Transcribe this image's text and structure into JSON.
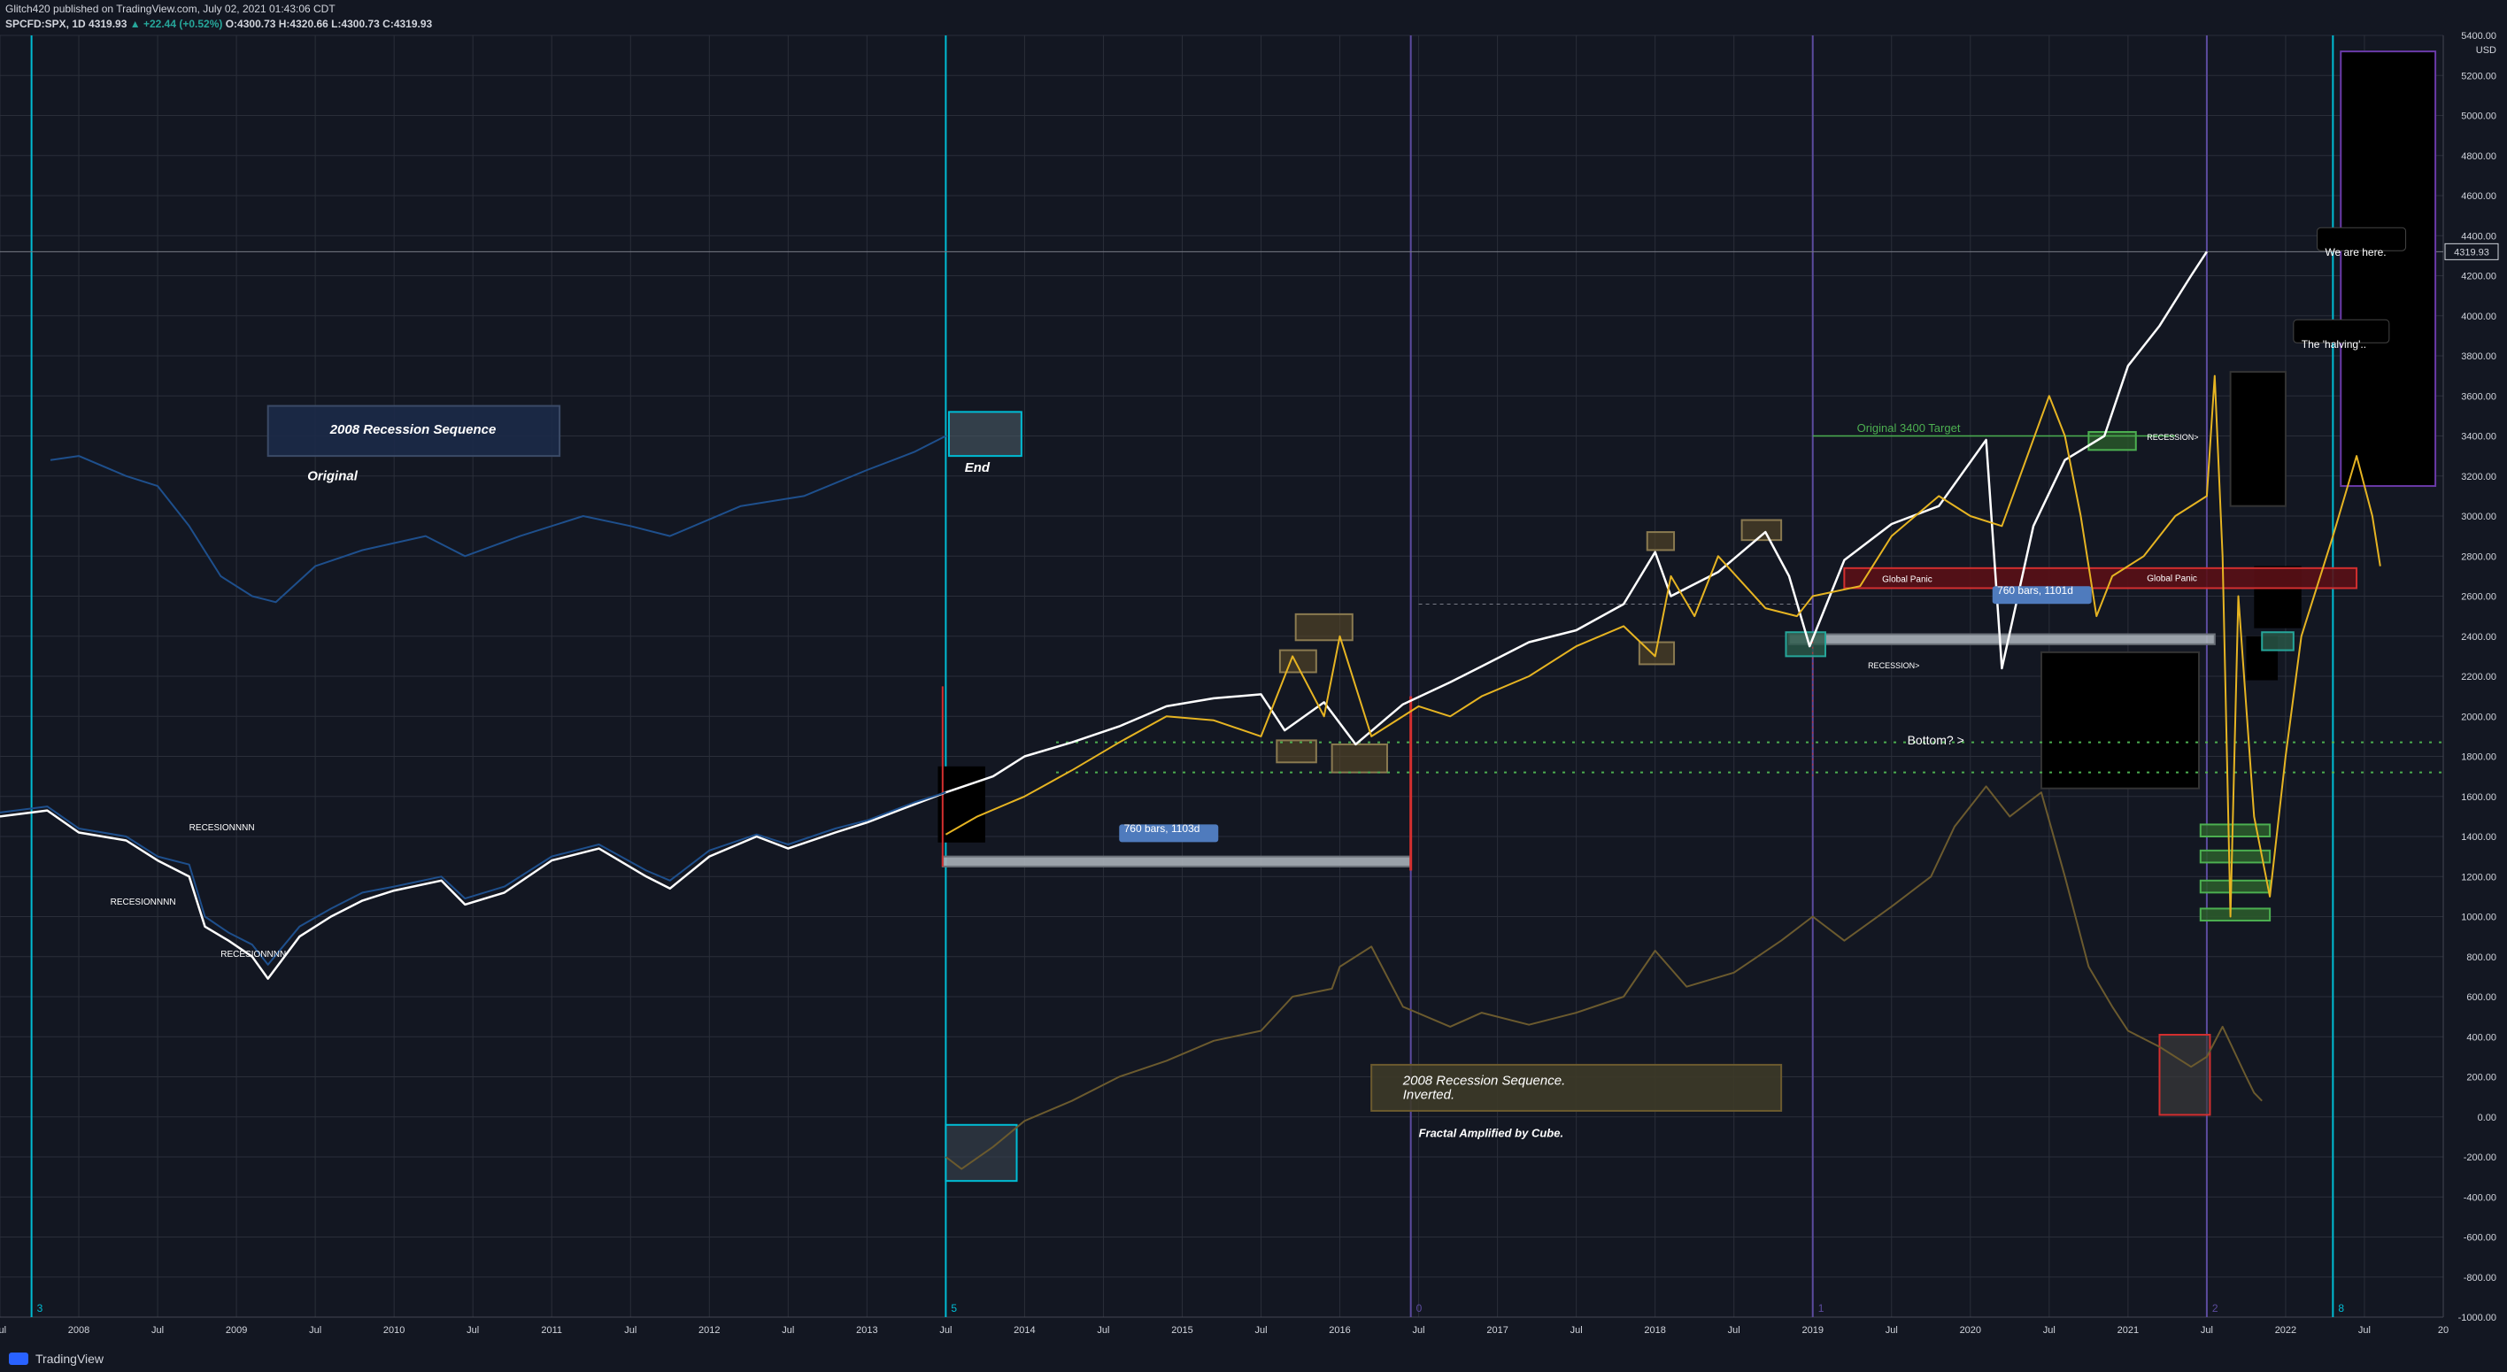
{
  "header": {
    "line1": "Glitch420 published on TradingView.com, July 02, 2021 01:43:06 CDT",
    "symbol": "SPCFD:SPX, 1D",
    "last": "4319.93",
    "change": "▲ +22.44 (+0.52%)",
    "ohlc": "O:4300.73 H:4320.66 L:4300.73 C:4319.93"
  },
  "footer": {
    "brand": "TradingView"
  },
  "price_label": "4319.93",
  "colors": {
    "background": "#131722",
    "white_series": "#ffffff",
    "blue_series": "#1e4f8c",
    "gold_series": "#e6b422",
    "faint_gold": "#6b5a2e",
    "cyan_line": "#00bcd4",
    "purple_line": "#5c4b9e",
    "red": "#d32f2f",
    "green": "#4caf50"
  },
  "annotations": {
    "seq_2008": "2008 Recession Sequence",
    "original": "Original",
    "end": "End",
    "recession1": "RECESIONNNN",
    "recession2": "RECESIONNNN",
    "recession3": "RECESIONNNN",
    "bars_760": "760 bars, 1103d",
    "bars_760b": "760 bars, 1101d",
    "target_3400": "Original 3400 Target",
    "global_panic1": "Global Panic",
    "global_panic2": "Global Panic",
    "recession_right1": "RECESSION>",
    "recession_right2": "RECESSION>",
    "bottom": "Bottom? >",
    "we_are_here": "We are here.",
    "halving": "The 'halving'..",
    "inverted_title": "2008 Recession Sequence.",
    "inverted_sub": "Inverted.",
    "fractal": "Fractal Amplified by Cube.",
    "vnum_3": "3",
    "vnum_5": "5",
    "vnum_0": "0",
    "vnum_1": "1",
    "vnum_2": "2",
    "vnum_8": "8"
  },
  "chart_data": {
    "type": "line",
    "title": "",
    "ylabel": "USD",
    "ylim": [
      -1000,
      5400
    ],
    "y_ticks": [
      -1000,
      -800,
      -600,
      -400,
      -200,
      0,
      200,
      400,
      600,
      800,
      1000,
      1200,
      1400,
      1600,
      1800,
      2000,
      2200,
      2400,
      2600,
      2800,
      3000,
      3200,
      3400,
      3600,
      3800,
      4000,
      4200,
      4400,
      4600,
      4800,
      5000,
      5200,
      5400
    ],
    "x_ticks": [
      "Jul",
      "2008",
      "Jul",
      "2009",
      "Jul",
      "2010",
      "Jul",
      "2011",
      "Jul",
      "2012",
      "Jul",
      "2013",
      "Jul",
      "2014",
      "Jul",
      "2015",
      "Jul",
      "2016",
      "Jul",
      "2017",
      "Jul",
      "2018",
      "Jul",
      "2019",
      "Jul",
      "2020",
      "Jul",
      "2021",
      "Jul",
      "2022",
      "Jul",
      "20"
    ],
    "x_range": [
      2007.5,
      2023.0
    ],
    "series": [
      {
        "points": [
          [
            2007.5,
            1500
          ],
          [
            2007.8,
            1530
          ],
          [
            2008.0,
            1420
          ],
          [
            2008.3,
            1380
          ],
          [
            2008.5,
            1280
          ],
          [
            2008.7,
            1200
          ],
          [
            2008.8,
            950
          ],
          [
            2008.95,
            880
          ],
          [
            2009.1,
            800
          ],
          [
            2009.2,
            690
          ],
          [
            2009.4,
            900
          ],
          [
            2009.6,
            1000
          ],
          [
            2009.8,
            1080
          ],
          [
            2010.0,
            1130
          ],
          [
            2010.3,
            1180
          ],
          [
            2010.45,
            1060
          ],
          [
            2010.7,
            1120
          ],
          [
            2011.0,
            1280
          ],
          [
            2011.3,
            1340
          ],
          [
            2011.6,
            1200
          ],
          [
            2011.75,
            1140
          ],
          [
            2012.0,
            1300
          ],
          [
            2012.3,
            1400
          ],
          [
            2012.5,
            1340
          ],
          [
            2012.8,
            1420
          ],
          [
            2013.0,
            1470
          ],
          [
            2013.3,
            1560
          ],
          [
            2013.5,
            1620
          ],
          [
            2013.8,
            1700
          ],
          [
            2014.0,
            1800
          ],
          [
            2014.3,
            1870
          ],
          [
            2014.6,
            1950
          ],
          [
            2014.9,
            2050
          ],
          [
            2015.2,
            2090
          ],
          [
            2015.5,
            2110
          ],
          [
            2015.65,
            1930
          ],
          [
            2015.9,
            2070
          ],
          [
            2016.1,
            1860
          ],
          [
            2016.4,
            2060
          ],
          [
            2016.7,
            2170
          ],
          [
            2016.9,
            2250
          ],
          [
            2017.2,
            2370
          ],
          [
            2017.5,
            2430
          ],
          [
            2017.8,
            2560
          ],
          [
            2018.0,
            2820
          ],
          [
            2018.1,
            2600
          ],
          [
            2018.4,
            2720
          ],
          [
            2018.7,
            2920
          ],
          [
            2018.85,
            2700
          ],
          [
            2018.98,
            2350
          ],
          [
            2019.2,
            2780
          ],
          [
            2019.5,
            2960
          ],
          [
            2019.8,
            3050
          ],
          [
            2020.1,
            3380
          ],
          [
            2020.2,
            2240
          ],
          [
            2020.4,
            2950
          ],
          [
            2020.6,
            3280
          ],
          [
            2020.85,
            3400
          ],
          [
            2021.0,
            3750
          ],
          [
            2021.2,
            3950
          ],
          [
            2021.4,
            4200
          ],
          [
            2021.5,
            4320
          ]
        ]
      },
      {
        "points": [
          [
            2007.5,
            1520
          ],
          [
            2007.8,
            1550
          ],
          [
            2008.0,
            1440
          ],
          [
            2008.3,
            1400
          ],
          [
            2008.5,
            1300
          ],
          [
            2008.7,
            1260
          ],
          [
            2008.8,
            1000
          ],
          [
            2008.95,
            920
          ],
          [
            2009.1,
            860
          ],
          [
            2009.2,
            760
          ],
          [
            2009.4,
            950
          ],
          [
            2009.6,
            1040
          ],
          [
            2009.8,
            1120
          ],
          [
            2010.0,
            1150
          ],
          [
            2010.3,
            1200
          ],
          [
            2010.45,
            1090
          ],
          [
            2010.7,
            1150
          ],
          [
            2011.0,
            1300
          ],
          [
            2011.3,
            1360
          ],
          [
            2011.6,
            1230
          ],
          [
            2011.75,
            1180
          ],
          [
            2012.0,
            1330
          ],
          [
            2012.3,
            1410
          ],
          [
            2012.5,
            1360
          ],
          [
            2012.8,
            1440
          ],
          [
            2013.0,
            1480
          ],
          [
            2013.3,
            1570
          ],
          [
            2013.5,
            1620
          ]
        ]
      },
      {
        "points": [
          [
            2007.82,
            3280
          ],
          [
            2008.0,
            3300
          ],
          [
            2008.3,
            3200
          ],
          [
            2008.5,
            3150
          ],
          [
            2008.7,
            2950
          ],
          [
            2008.9,
            2700
          ],
          [
            2009.1,
            2600
          ],
          [
            2009.25,
            2570
          ],
          [
            2009.5,
            2750
          ],
          [
            2009.8,
            2830
          ],
          [
            2010.2,
            2900
          ],
          [
            2010.45,
            2800
          ],
          [
            2010.8,
            2900
          ],
          [
            2011.2,
            3000
          ],
          [
            2011.5,
            2950
          ],
          [
            2011.75,
            2900
          ],
          [
            2012.2,
            3050
          ],
          [
            2012.6,
            3100
          ],
          [
            2013.0,
            3230
          ],
          [
            2013.3,
            3320
          ],
          [
            2013.5,
            3400
          ]
        ]
      },
      {
        "points": [
          [
            2013.5,
            1410
          ],
          [
            2013.7,
            1500
          ],
          [
            2014.0,
            1600
          ],
          [
            2014.3,
            1730
          ],
          [
            2014.6,
            1870
          ],
          [
            2014.9,
            2000
          ],
          [
            2015.2,
            1980
          ],
          [
            2015.5,
            1900
          ],
          [
            2015.7,
            2300
          ],
          [
            2015.9,
            2000
          ],
          [
            2016.0,
            2400
          ],
          [
            2016.2,
            1900
          ],
          [
            2016.5,
            2050
          ],
          [
            2016.7,
            2000
          ],
          [
            2016.9,
            2100
          ],
          [
            2017.2,
            2200
          ],
          [
            2017.5,
            2350
          ],
          [
            2017.8,
            2450
          ],
          [
            2018.0,
            2300
          ],
          [
            2018.1,
            2700
          ],
          [
            2018.25,
            2500
          ],
          [
            2018.4,
            2800
          ],
          [
            2018.7,
            2540
          ],
          [
            2018.9,
            2500
          ],
          [
            2019.0,
            2600
          ],
          [
            2019.3,
            2650
          ],
          [
            2019.5,
            2900
          ],
          [
            2019.8,
            3100
          ],
          [
            2020.0,
            3000
          ],
          [
            2020.2,
            2950
          ],
          [
            2020.5,
            3600
          ],
          [
            2020.6,
            3400
          ],
          [
            2020.7,
            3000
          ],
          [
            2020.8,
            2500
          ],
          [
            2020.9,
            2700
          ],
          [
            2021.1,
            2800
          ],
          [
            2021.3,
            3000
          ],
          [
            2021.5,
            3100
          ],
          [
            2021.55,
            3700
          ],
          [
            2021.6,
            2800
          ],
          [
            2021.65,
            1000
          ],
          [
            2021.7,
            2600
          ],
          [
            2021.8,
            1500
          ],
          [
            2021.9,
            1100
          ],
          [
            2022.0,
            1800
          ],
          [
            2022.1,
            2400
          ],
          [
            2022.3,
            2900
          ],
          [
            2022.45,
            3300
          ],
          [
            2022.55,
            3000
          ],
          [
            2022.6,
            2750
          ]
        ]
      },
      {
        "points": [
          [
            2013.5,
            -200
          ],
          [
            2013.6,
            -260
          ],
          [
            2013.8,
            -150
          ],
          [
            2014.0,
            -20
          ],
          [
            2014.3,
            80
          ],
          [
            2014.6,
            200
          ],
          [
            2014.9,
            280
          ],
          [
            2015.2,
            380
          ],
          [
            2015.5,
            430
          ],
          [
            2015.7,
            600
          ],
          [
            2015.95,
            640
          ],
          [
            2016.0,
            750
          ],
          [
            2016.2,
            850
          ],
          [
            2016.4,
            550
          ],
          [
            2016.7,
            450
          ],
          [
            2016.9,
            520
          ],
          [
            2017.2,
            460
          ],
          [
            2017.5,
            520
          ],
          [
            2017.8,
            600
          ],
          [
            2018.0,
            830
          ],
          [
            2018.2,
            650
          ],
          [
            2018.5,
            720
          ],
          [
            2018.8,
            880
          ],
          [
            2019.0,
            1000
          ],
          [
            2019.2,
            880
          ],
          [
            2019.5,
            1050
          ],
          [
            2019.75,
            1200
          ],
          [
            2019.9,
            1450
          ],
          [
            2020.1,
            1650
          ],
          [
            2020.25,
            1500
          ],
          [
            2020.45,
            1620
          ],
          [
            2020.6,
            1200
          ],
          [
            2020.75,
            750
          ],
          [
            2020.9,
            550
          ],
          [
            2021.0,
            430
          ],
          [
            2021.2,
            350
          ],
          [
            2021.4,
            250
          ],
          [
            2021.5,
            300
          ],
          [
            2021.6,
            450
          ],
          [
            2021.75,
            200
          ],
          [
            2021.8,
            120
          ],
          [
            2021.85,
            80
          ]
        ]
      }
    ]
  }
}
